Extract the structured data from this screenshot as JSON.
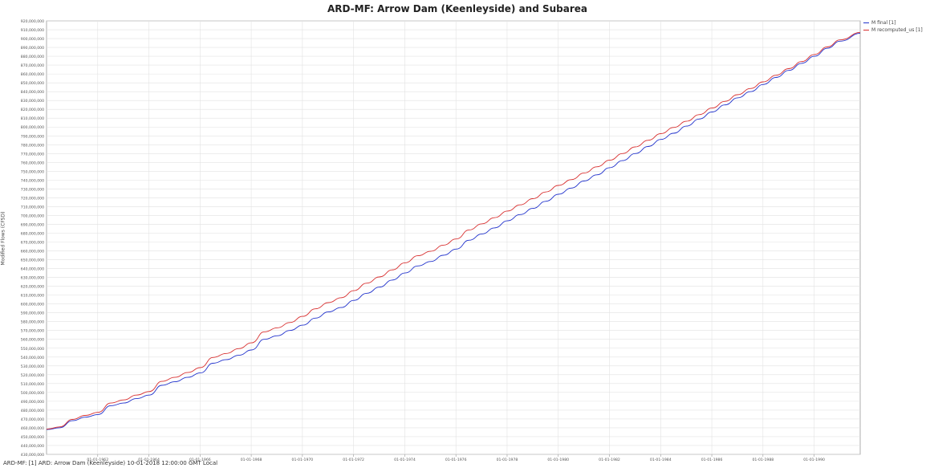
{
  "chart_data": {
    "type": "line",
    "title": "ARD-MF: Arrow Dam (Keenleyside) and Subarea",
    "ylabel": "Modified Flows (CFSD)",
    "xlabel": "",
    "ylim": [
      430000000,
      920000000
    ],
    "xlim": [
      1960.0,
      1991.8
    ],
    "y_ticks": [
      430000000,
      440000000,
      450000000,
      460000000,
      470000000,
      480000000,
      490000000,
      500000000,
      510000000,
      520000000,
      530000000,
      540000000,
      550000000,
      560000000,
      570000000,
      580000000,
      590000000,
      600000000,
      610000000,
      620000000,
      630000000,
      640000000,
      650000000,
      660000000,
      670000000,
      680000000,
      690000000,
      700000000,
      710000000,
      720000000,
      730000000,
      740000000,
      750000000,
      760000000,
      770000000,
      780000000,
      790000000,
      800000000,
      810000000,
      820000000,
      830000000,
      840000000,
      850000000,
      860000000,
      870000000,
      880000000,
      890000000,
      900000000,
      910000000,
      920000000
    ],
    "y_tick_labels": [
      "430,000,000",
      "440,000,000",
      "450,000,000",
      "460,000,000",
      "470,000,000",
      "480,000,000",
      "490,000,000",
      "500,000,000",
      "510,000,000",
      "520,000,000",
      "530,000,000",
      "540,000,000",
      "550,000,000",
      "560,000,000",
      "570,000,000",
      "580,000,000",
      "590,000,000",
      "600,000,000",
      "610,000,000",
      "620,000,000",
      "630,000,000",
      "640,000,000",
      "650,000,000",
      "660,000,000",
      "670,000,000",
      "680,000,000",
      "690,000,000",
      "700,000,000",
      "710,000,000",
      "720,000,000",
      "730,000,000",
      "740,000,000",
      "750,000,000",
      "760,000,000",
      "770,000,000",
      "780,000,000",
      "790,000,000",
      "800,000,000",
      "810,000,000",
      "820,000,000",
      "830,000,000",
      "840,000,000",
      "850,000,000",
      "860,000,000",
      "870,000,000",
      "880,000,000",
      "890,000,000",
      "900,000,000",
      "910,000,000",
      "920,000,000"
    ],
    "x_ticks": [
      1962,
      1964,
      1966,
      1968,
      1970,
      1972,
      1974,
      1976,
      1978,
      1980,
      1982,
      1984,
      1986,
      1988,
      1990
    ],
    "x_tick_labels": [
      "01-01-1962",
      "01-01-1964",
      "01-01-1966",
      "01-01-1968",
      "01-01-1970",
      "01-01-1972",
      "01-01-1974",
      "01-01-1976",
      "01-01-1978",
      "01-01-1980",
      "01-01-1982",
      "01-01-1984",
      "01-01-1986",
      "01-01-1988",
      "01-01-1990"
    ],
    "grid": true,
    "legend_position": "top-right",
    "series": [
      {
        "name": "M final [1]",
        "color": "#2233cc",
        "x": [
          1960.0,
          1960.5,
          1961.0,
          1961.5,
          1962.0,
          1962.5,
          1963.0,
          1963.5,
          1964.0,
          1964.5,
          1965.0,
          1965.5,
          1966.0,
          1966.5,
          1967.0,
          1967.5,
          1968.0,
          1968.5,
          1969.0,
          1969.5,
          1970.0,
          1970.5,
          1971.0,
          1971.5,
          1972.0,
          1972.5,
          1973.0,
          1973.5,
          1974.0,
          1974.5,
          1975.0,
          1975.5,
          1976.0,
          1976.5,
          1977.0,
          1977.5,
          1978.0,
          1978.5,
          1979.0,
          1979.5,
          1980.0,
          1980.5,
          1981.0,
          1981.5,
          1982.0,
          1982.5,
          1983.0,
          1983.5,
          1984.0,
          1984.5,
          1985.0,
          1985.5,
          1986.0,
          1986.5,
          1987.0,
          1987.5,
          1988.0,
          1988.5,
          1989.0,
          1989.5,
          1990.0,
          1990.5,
          1991.0,
          1991.8
        ],
        "y": [
          458000000,
          460000000,
          468000000,
          472000000,
          475000000,
          485000000,
          488000000,
          493000000,
          497000000,
          508000000,
          512000000,
          517000000,
          522000000,
          533000000,
          537000000,
          542000000,
          548000000,
          560000000,
          564000000,
          570000000,
          576000000,
          584000000,
          591000000,
          596000000,
          604000000,
          612000000,
          619000000,
          627000000,
          635000000,
          643000000,
          648000000,
          655000000,
          662000000,
          672000000,
          679000000,
          686000000,
          694000000,
          701000000,
          708000000,
          716000000,
          724000000,
          731000000,
          739000000,
          746000000,
          754000000,
          762000000,
          770000000,
          778000000,
          786000000,
          793000000,
          801000000,
          809000000,
          817000000,
          825000000,
          833000000,
          840000000,
          848000000,
          856000000,
          864000000,
          872000000,
          880000000,
          889000000,
          897000000,
          906000000
        ]
      },
      {
        "name": "M recomputed_us [1]",
        "color": "#d83030",
        "x": [
          1960.0,
          1960.5,
          1961.0,
          1961.5,
          1962.0,
          1962.5,
          1963.0,
          1963.5,
          1964.0,
          1964.5,
          1965.0,
          1965.5,
          1966.0,
          1966.5,
          1967.0,
          1967.5,
          1968.0,
          1968.5,
          1969.0,
          1969.5,
          1970.0,
          1970.5,
          1971.0,
          1971.5,
          1972.0,
          1972.5,
          1973.0,
          1973.5,
          1974.0,
          1974.5,
          1975.0,
          1975.5,
          1976.0,
          1976.5,
          1977.0,
          1977.5,
          1978.0,
          1978.5,
          1979.0,
          1979.5,
          1980.0,
          1980.5,
          1981.0,
          1981.5,
          1982.0,
          1982.5,
          1983.0,
          1983.5,
          1984.0,
          1984.5,
          1985.0,
          1985.5,
          1986.0,
          1986.5,
          1987.0,
          1987.5,
          1988.0,
          1988.5,
          1989.0,
          1989.5,
          1990.0,
          1990.5,
          1991.0,
          1991.8
        ],
        "y": [
          458500000,
          461000000,
          469500000,
          474000000,
          477500000,
          488000000,
          491500000,
          497000000,
          501000000,
          512500000,
          517000000,
          522500000,
          528000000,
          539500000,
          544000000,
          549500000,
          556000000,
          568500000,
          573000000,
          579000000,
          586000000,
          594500000,
          601500000,
          607000000,
          615000000,
          623500000,
          630500000,
          638500000,
          646500000,
          654500000,
          659500000,
          666500000,
          673500000,
          683500000,
          690500000,
          697500000,
          705000000,
          712000000,
          719000000,
          726500000,
          734000000,
          740500000,
          748000000,
          755000000,
          762500000,
          770000000,
          777500000,
          785000000,
          792500000,
          799500000,
          806500000,
          814000000,
          821500000,
          829000000,
          836500000,
          843500000,
          851000000,
          858500000,
          866000000,
          874000000,
          882000000,
          890500000,
          898500000,
          907000000
        ]
      }
    ]
  },
  "status": {
    "text": "ARD-MF: [1] ARD: Arrow Dam (Keenleyside) 10-01-2018 12:00:00 GMT Local"
  }
}
